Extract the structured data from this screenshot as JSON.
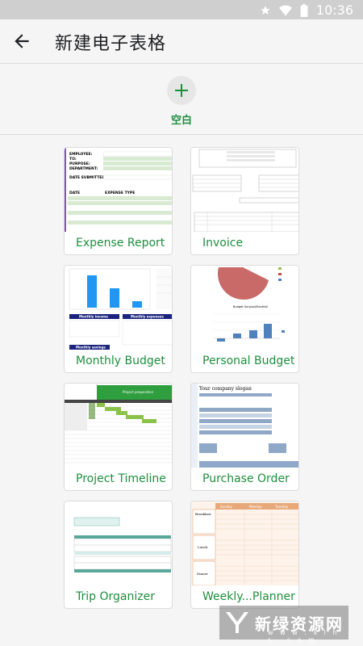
{
  "status": {
    "time": "10:36",
    "icons": [
      "star-icon",
      "wifi-icon",
      "battery-icon"
    ]
  },
  "header": {
    "title": "新建电子表格"
  },
  "blank": {
    "label": "空白"
  },
  "templates": [
    {
      "label": "Expense Report"
    },
    {
      "label": "Invoice"
    },
    {
      "label": "Monthly Budget"
    },
    {
      "label": "Personal Budget"
    },
    {
      "label": "Project Timeline"
    },
    {
      "label": "Purchase Order"
    },
    {
      "label": "Trip Organizer"
    },
    {
      "label": "Weekly...Planner"
    }
  ],
  "thumbs": {
    "expense": [
      "EMPLOYEE:",
      "TO:",
      "PURPOSE:",
      "DEPARTMENT:",
      "DATE SUBMITTED:",
      "DATE",
      "EXPENSE TYPE"
    ],
    "budget": [
      "Monthly income",
      "Monthly expenses",
      "Monthly savings"
    ],
    "personal": [
      "Budget Surplus/Shortfall",
      "Personal",
      "Budget",
      "Other"
    ],
    "timeline": [
      "Project preparation"
    ],
    "purchase": [
      "Your company slogan"
    ],
    "weekly": [
      "Breakfast",
      "Lunch",
      "Dinner",
      "Sunday",
      "Monday",
      "Tuesday"
    ]
  },
  "colors": {
    "accent": "#1e8e3e",
    "title": "#202124"
  },
  "watermark": {
    "text": "新绿资源网",
    "sub": "w w w . x l h s . c o m"
  }
}
